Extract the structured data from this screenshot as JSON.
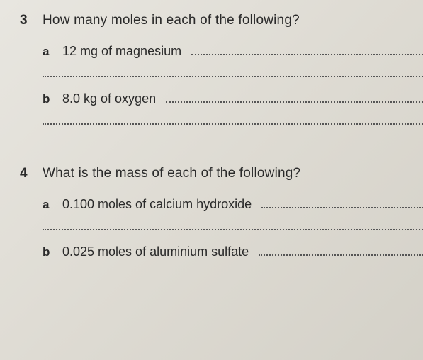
{
  "questions": [
    {
      "number": "3",
      "text": "How many moles in each of the following?",
      "items": [
        {
          "letter": "a",
          "text": "12 mg of magnesium"
        },
        {
          "letter": "b",
          "text": "8.0 kg of oxygen"
        }
      ]
    },
    {
      "number": "4",
      "text": "What is the mass of each of the following?",
      "items": [
        {
          "letter": "a",
          "text": "0.100 moles of calcium hydroxide"
        },
        {
          "letter": "b",
          "text": "0.025 moles of aluminium sulfate"
        }
      ]
    }
  ],
  "style": {
    "background_gradient": [
      "#e8e6e0",
      "#dedbd3",
      "#d4d1c8"
    ],
    "text_color": "#2a2a2a",
    "dotted_color": "#555555",
    "font_family": "Arial, Helvetica, sans-serif",
    "question_number_fontsize": 19,
    "question_text_fontsize": 19,
    "sub_letter_fontsize": 17,
    "sub_text_fontsize": 18
  }
}
